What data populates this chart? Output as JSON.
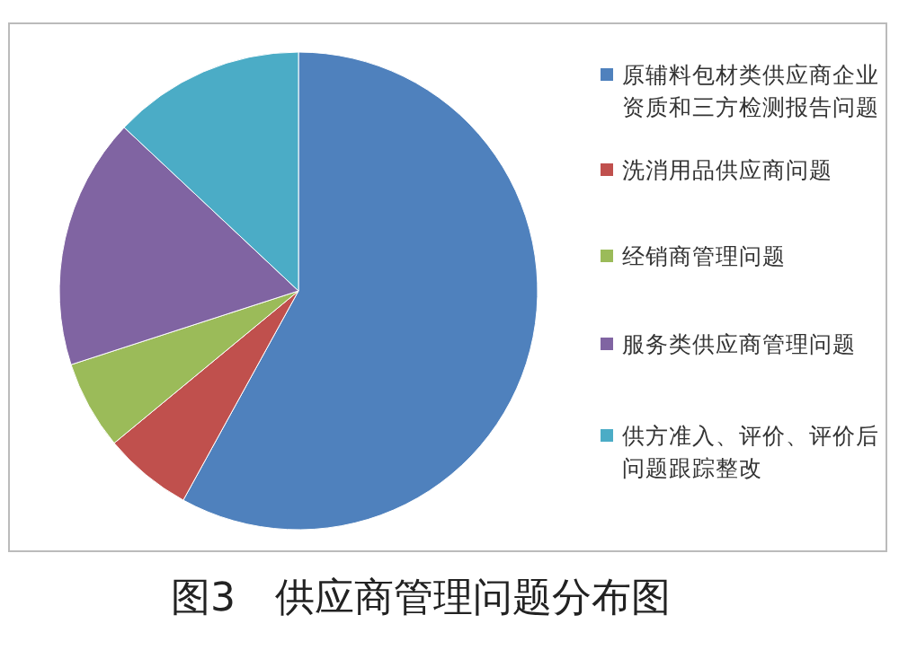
{
  "chart_data": {
    "type": "pie",
    "title": "图3　供应商管理问题分布图",
    "categories": [
      "原辅料包材类供应商企业资质和三方检测报告问题",
      "洗消用品供应商问题",
      "经销商管理问题",
      "服务类供应商管理问题",
      "供方准入、评价、评价后问题跟踪整改"
    ],
    "values": [
      58,
      6,
      6,
      17,
      13
    ],
    "colors": [
      "#4f81bd",
      "#c0504d",
      "#9bbb59",
      "#8064a2",
      "#4bacc6"
    ],
    "legend": "right"
  }
}
